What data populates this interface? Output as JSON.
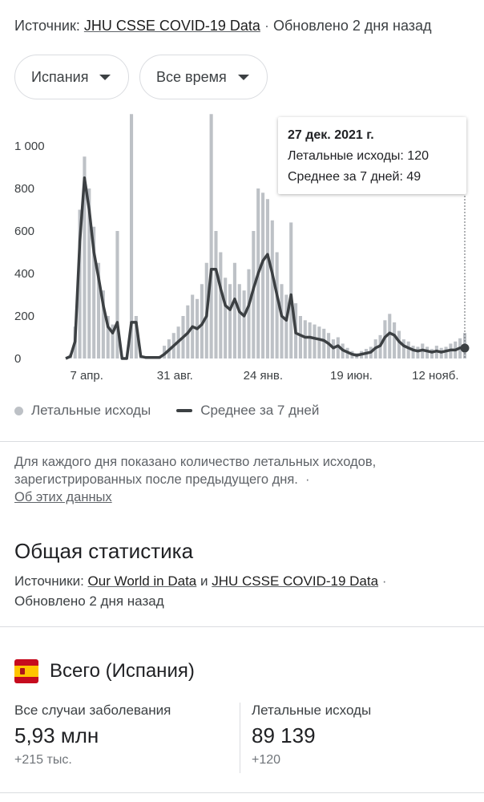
{
  "header": {
    "source_prefix": "Источник:",
    "source_link": "JHU CSSE COVID-19 Data",
    "updated": "Обновлено 2 дня назад"
  },
  "filters": {
    "country": "Испания",
    "period": "Все время"
  },
  "tooltip": {
    "date": "27 дек. 2021 г.",
    "deaths": "Летальные исходы: 120",
    "avg": "Среднее за 7 дней: 49"
  },
  "legend": {
    "bars": "Летальные исходы",
    "line": "Среднее за 7 дней"
  },
  "note": {
    "text": "Для каждого дня показано количество летальных исходов, зарегистрированных после предыдущего дня.",
    "link": "Об этих данных"
  },
  "stats_section": {
    "title": "Общая статистика",
    "sources_prefix": "Источники:",
    "source1": "Our World in Data",
    "and": "и",
    "source2": "JHU CSSE COVID-19 Data",
    "updated": "Обновлено 2 дня назад"
  },
  "total": {
    "title": "Всего (Испания)",
    "flag_icon": "spain-flag-icon",
    "cases_label": "Все случаи заболевания",
    "cases_value": "5,93 млн",
    "cases_delta": "+215 тыс.",
    "deaths_label": "Летальные исходы",
    "deaths_value": "89 139",
    "deaths_delta": "+120"
  },
  "colors": {
    "bars": "#bdc1c6",
    "line": "#3c4043",
    "grid": "#e8eaed"
  },
  "chart_data": {
    "type": "bar",
    "title": "",
    "xlabel": "",
    "ylabel": "",
    "ylim": [
      0,
      1100
    ],
    "y_ticks": [
      0,
      200,
      400,
      600,
      800,
      1000
    ],
    "y_tick_labels": [
      "0",
      "200",
      "400",
      "600",
      "800",
      "1 000"
    ],
    "x_tick_labels": [
      "7 апр.",
      "31 авг.",
      "24 янв.",
      "19 июн.",
      "12 нояб."
    ],
    "x_tick_weeks": [
      5,
      26,
      47,
      68,
      88
    ],
    "x_range_weeks": [
      0,
      95
    ],
    "x_unit": "weeks since first reported death (Mar 2020)",
    "series": [
      {
        "name": "Среднее за 7 дней",
        "kind": "line",
        "values": [
          0,
          10,
          80,
          550,
          850,
          700,
          500,
          380,
          250,
          150,
          120,
          170,
          0,
          0,
          170,
          170,
          10,
          5,
          5,
          5,
          5,
          20,
          40,
          60,
          80,
          100,
          120,
          150,
          140,
          160,
          200,
          420,
          420,
          330,
          250,
          230,
          280,
          220,
          200,
          250,
          330,
          400,
          460,
          490,
          400,
          300,
          200,
          180,
          300,
          120,
          110,
          100,
          100,
          95,
          90,
          85,
          70,
          50,
          60,
          40,
          30,
          20,
          15,
          20,
          25,
          30,
          50,
          60,
          100,
          120,
          110,
          80,
          60,
          50,
          40,
          35,
          40,
          35,
          30,
          35,
          30,
          35,
          40,
          40,
          50,
          49
        ]
      },
      {
        "name": "Летальные исходы",
        "kind": "bar",
        "values": [
          0,
          20,
          150,
          700,
          950,
          800,
          620,
          450,
          320,
          200,
          160,
          600,
          0,
          0,
          1150,
          200,
          15,
          10,
          8,
          10,
          12,
          60,
          90,
          120,
          150,
          200,
          250,
          300,
          280,
          350,
          450,
          1150,
          600,
          500,
          380,
          350,
          450,
          350,
          320,
          420,
          600,
          800,
          780,
          750,
          650,
          500,
          350,
          300,
          640,
          260,
          200,
          180,
          170,
          160,
          150,
          140,
          120,
          90,
          100,
          70,
          50,
          35,
          25,
          35,
          45,
          55,
          90,
          110,
          180,
          210,
          170,
          130,
          90,
          80,
          60,
          55,
          70,
          55,
          45,
          60,
          50,
          55,
          70,
          80,
          95,
          120
        ]
      }
    ],
    "selected_point": {
      "date": "27 дек. 2021 г.",
      "deaths": 120,
      "avg": 49
    },
    "grid": false,
    "legend_position": "bottom"
  }
}
